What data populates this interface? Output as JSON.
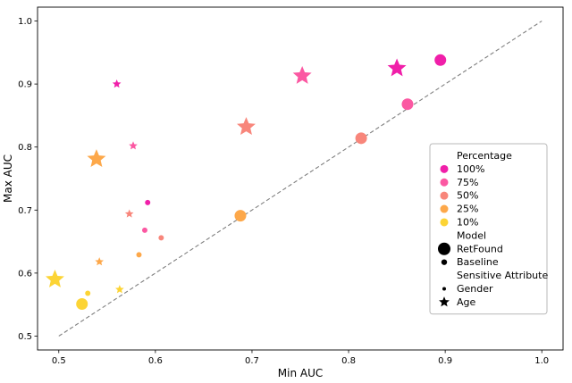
{
  "figure": {
    "background": "#ffffff"
  },
  "chart_data": {
    "type": "scatter",
    "title": "",
    "xlabel": "Min AUC",
    "ylabel": "Max AUC",
    "xlim": [
      0.478,
      1.022
    ],
    "ylim": [
      0.478,
      1.022
    ],
    "xticks": [
      "0.5",
      "0.6",
      "0.7",
      "0.8",
      "0.9",
      "1.0"
    ],
    "yticks": [
      "0.5",
      "0.6",
      "0.7",
      "0.8",
      "0.9",
      "1.0"
    ],
    "grid": false,
    "reference_line": {
      "from": [
        0.5,
        0.5
      ],
      "to": [
        1.0,
        1.0
      ],
      "style": "dashed",
      "color": "#7f7f7f"
    },
    "encoding": {
      "color": "percentage",
      "size": "model",
      "shape": "sensitive_attribute"
    },
    "percentage_colors": {
      "100%": "#f01fa9",
      "75%": "#fb58a2",
      "50%": "#f8867b",
      "25%": "#fda84a",
      "10%": "#fcd435"
    },
    "shape_map": {
      "Gender": "circle",
      "Age": "star"
    },
    "size_map": {
      "RetFound": 1.0,
      "Baseline": 0.46
    },
    "points": [
      {
        "x": 0.895,
        "y": 0.938,
        "percentage": "100%",
        "model": "RetFound",
        "attribute": "Gender"
      },
      {
        "x": 0.85,
        "y": 0.925,
        "percentage": "100%",
        "model": "RetFound",
        "attribute": "Age"
      },
      {
        "x": 0.592,
        "y": 0.712,
        "percentage": "100%",
        "model": "Baseline",
        "attribute": "Gender"
      },
      {
        "x": 0.56,
        "y": 0.9,
        "percentage": "100%",
        "model": "Baseline",
        "attribute": "Age"
      },
      {
        "x": 0.861,
        "y": 0.868,
        "percentage": "75%",
        "model": "RetFound",
        "attribute": "Gender"
      },
      {
        "x": 0.752,
        "y": 0.913,
        "percentage": "75%",
        "model": "RetFound",
        "attribute": "Age"
      },
      {
        "x": 0.589,
        "y": 0.668,
        "percentage": "75%",
        "model": "Baseline",
        "attribute": "Gender"
      },
      {
        "x": 0.577,
        "y": 0.802,
        "percentage": "75%",
        "model": "Baseline",
        "attribute": "Age"
      },
      {
        "x": 0.813,
        "y": 0.814,
        "percentage": "50%",
        "model": "RetFound",
        "attribute": "Gender"
      },
      {
        "x": 0.694,
        "y": 0.832,
        "percentage": "50%",
        "model": "RetFound",
        "attribute": "Age"
      },
      {
        "x": 0.606,
        "y": 0.656,
        "percentage": "50%",
        "model": "Baseline",
        "attribute": "Gender"
      },
      {
        "x": 0.573,
        "y": 0.694,
        "percentage": "50%",
        "model": "Baseline",
        "attribute": "Age"
      },
      {
        "x": 0.688,
        "y": 0.691,
        "percentage": "25%",
        "model": "RetFound",
        "attribute": "Gender"
      },
      {
        "x": 0.539,
        "y": 0.781,
        "percentage": "25%",
        "model": "RetFound",
        "attribute": "Age"
      },
      {
        "x": 0.583,
        "y": 0.629,
        "percentage": "25%",
        "model": "Baseline",
        "attribute": "Gender"
      },
      {
        "x": 0.542,
        "y": 0.618,
        "percentage": "25%",
        "model": "Baseline",
        "attribute": "Age"
      },
      {
        "x": 0.524,
        "y": 0.551,
        "percentage": "10%",
        "model": "RetFound",
        "attribute": "Gender"
      },
      {
        "x": 0.496,
        "y": 0.59,
        "percentage": "10%",
        "model": "RetFound",
        "attribute": "Age"
      },
      {
        "x": 0.53,
        "y": 0.568,
        "percentage": "10%",
        "model": "Baseline",
        "attribute": "Gender"
      },
      {
        "x": 0.563,
        "y": 0.574,
        "percentage": "10%",
        "model": "Baseline",
        "attribute": "Age"
      }
    ],
    "legend": {
      "position": "center right",
      "sections": [
        {
          "title": "Percentage",
          "items": [
            {
              "label": "100%",
              "marker": "circle",
              "color": "#f01fa9",
              "size": "medium"
            },
            {
              "label": "75%",
              "marker": "circle",
              "color": "#fb58a2",
              "size": "medium"
            },
            {
              "label": "50%",
              "marker": "circle",
              "color": "#f8867b",
              "size": "medium"
            },
            {
              "label": "25%",
              "marker": "circle",
              "color": "#fda84a",
              "size": "medium"
            },
            {
              "label": "10%",
              "marker": "circle",
              "color": "#fcd435",
              "size": "medium"
            }
          ]
        },
        {
          "title": "Model",
          "items": [
            {
              "label": "RetFound",
              "marker": "circle",
              "color": "#000000",
              "size": "large"
            },
            {
              "label": "Baseline",
              "marker": "circle",
              "color": "#000000",
              "size": "small"
            }
          ]
        },
        {
          "title": "Sensitive Attribute",
          "items": [
            {
              "label": "Gender",
              "marker": "circle",
              "color": "#000000",
              "size": "tiny"
            },
            {
              "label": "Age",
              "marker": "star",
              "color": "#000000",
              "size": "medium"
            }
          ]
        }
      ]
    }
  }
}
